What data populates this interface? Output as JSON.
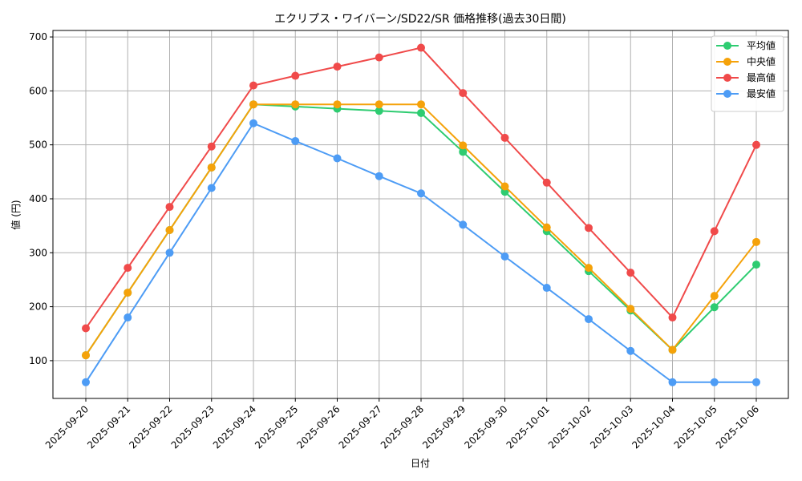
{
  "chart_data": {
    "type": "line",
    "title": "エクリプス・ワイバーン/SD22/SR 価格推移(過去30日間)",
    "xlabel": "日付",
    "ylabel": "値 (円)",
    "categories": [
      "2025-09-20",
      "2025-09-21",
      "2025-09-22",
      "2025-09-23",
      "2025-09-24",
      "2025-09-25",
      "2025-09-26",
      "2025-09-27",
      "2025-09-28",
      "2025-09-29",
      "2025-09-30",
      "2025-10-01",
      "2025-10-02",
      "2025-10-03",
      "2025-10-04",
      "2025-10-05",
      "2025-10-06"
    ],
    "ylim": [
      30,
      712
    ],
    "yticks": [
      100,
      200,
      300,
      400,
      500,
      600,
      700
    ],
    "grid": true,
    "legend_position": "top-right",
    "series": [
      {
        "name": "平均値",
        "color": "#2ecc71",
        "values": [
          110,
          226,
          342,
          458,
          575,
          571,
          567,
          563,
          559,
          487,
          413,
          340,
          266,
          193,
          120,
          199,
          278
        ]
      },
      {
        "name": "中央値",
        "color": "#f5a20a",
        "values": [
          110,
          226,
          342,
          458,
          575,
          575,
          575,
          575,
          575,
          499,
          423,
          347,
          272,
          196,
          120,
          220,
          320
        ]
      },
      {
        "name": "最高値",
        "color": "#f04a4a",
        "values": [
          160,
          272,
          385,
          497,
          610,
          628,
          645,
          662,
          680,
          596,
          513,
          430,
          346,
          263,
          180,
          340,
          500
        ]
      },
      {
        "name": "最安値",
        "color": "#4d9cf5",
        "values": [
          60,
          180,
          300,
          420,
          540,
          507,
          475,
          442,
          410,
          352,
          293,
          235,
          177,
          118,
          60,
          60,
          60
        ]
      }
    ]
  }
}
